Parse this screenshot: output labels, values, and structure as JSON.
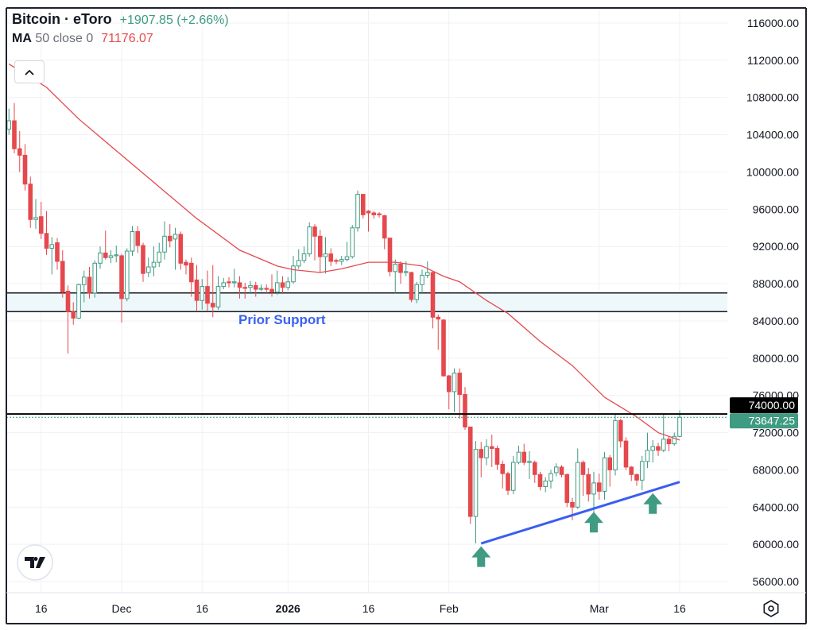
{
  "header": {
    "title": "Bitcoin · eToro",
    "change": "+1907.85 (+2.66%)",
    "indicator_name": "MA",
    "indicator_params": "50 close 0",
    "indicator_value": "71176.07"
  },
  "icons": {
    "collapse": "chevron-up-icon",
    "logo": "tradingview-logo-icon",
    "settings": "hexagon-settings-icon",
    "markers": "arrow-up-icon"
  },
  "colors": {
    "up": "#3f9b82",
    "down": "#e5484d",
    "ma": "#e5484d",
    "trendline": "#3a5ef0",
    "support_zone": "#eef8fb",
    "annotation_text": "#3a63f0",
    "resistance": "#000000"
  },
  "chart_data": {
    "type": "candlestick",
    "interval": "1D",
    "last_date": "2026-03-16",
    "ylim": [
      54000,
      118000
    ],
    "grid": true,
    "y_ticks": [
      "116000.00",
      "112000.00",
      "108000.00",
      "104000.00",
      "100000.00",
      "96000.00",
      "92000.00",
      "88000.00",
      "84000.00",
      "80000.00",
      "76000.00",
      "72000.00",
      "68000.00",
      "64000.00",
      "60000.00",
      "56000.00"
    ],
    "x_ticks": [
      {
        "label": "16",
        "bar": 6,
        "bold": false
      },
      {
        "label": "Dec",
        "bar": 21,
        "bold": false
      },
      {
        "label": "16",
        "bar": 36,
        "bold": false
      },
      {
        "label": "2026",
        "bar": 52,
        "bold": true
      },
      {
        "label": "16",
        "bar": 67,
        "bold": false
      },
      {
        "label": "Feb",
        "bar": 82,
        "bold": false
      },
      {
        "label": "Mar",
        "bar": 110,
        "bold": false
      },
      {
        "label": "16",
        "bar": 125,
        "bold": false
      }
    ],
    "ohlc_columns": [
      "open",
      "high",
      "low",
      "close"
    ],
    "candles": [
      [
        104600,
        106800,
        104000,
        105500
      ],
      [
        105500,
        107400,
        102000,
        102500
      ],
      [
        102500,
        104400,
        100000,
        101800
      ],
      [
        101800,
        103000,
        98000,
        98700
      ],
      [
        98700,
        99500,
        94000,
        94900
      ],
      [
        94900,
        97100,
        93900,
        95100
      ],
      [
        95200,
        96800,
        92800,
        93400
      ],
      [
        93400,
        95800,
        91100,
        91800
      ],
      [
        91800,
        93000,
        89000,
        92200
      ],
      [
        92400,
        92900,
        89500,
        90400
      ],
      [
        90400,
        91600,
        86500,
        87100
      ],
      [
        87200,
        87800,
        80500,
        85000
      ],
      [
        85000,
        86000,
        83600,
        84300
      ],
      [
        84300,
        88000,
        84200,
        87900
      ],
      [
        87900,
        89400,
        86000,
        88700
      ],
      [
        88700,
        89800,
        86400,
        87000
      ],
      [
        87000,
        90500,
        86500,
        90200
      ],
      [
        90200,
        92000,
        89600,
        91300
      ],
      [
        91300,
        93700,
        90600,
        90800
      ],
      [
        90800,
        91600,
        90200,
        91000
      ],
      [
        91000,
        92100,
        90300,
        91100
      ],
      [
        91000,
        91200,
        83800,
        86400
      ],
      [
        86400,
        91800,
        86100,
        91500
      ],
      [
        91500,
        94200,
        91000,
        93600
      ],
      [
        93600,
        94200,
        91300,
        92100
      ],
      [
        92100,
        92400,
        88200,
        89100
      ],
      [
        89200,
        90800,
        88700,
        89800
      ],
      [
        89800,
        92000,
        88800,
        90300
      ],
      [
        90300,
        92400,
        89800,
        91400
      ],
      [
        91400,
        94700,
        90600,
        93100
      ],
      [
        93100,
        94400,
        91900,
        92600
      ],
      [
        92800,
        94000,
        89500,
        93300
      ],
      [
        93300,
        93600,
        89500,
        90200
      ],
      [
        90300,
        90600,
        89000,
        90000
      ],
      [
        90200,
        90800,
        86600,
        88200
      ],
      [
        88400,
        90000,
        85000,
        86200
      ],
      [
        86200,
        88500,
        85200,
        87700
      ],
      [
        87700,
        89400,
        85000,
        85900
      ],
      [
        85900,
        90000,
        84400,
        85500
      ],
      [
        85500,
        88800,
        85200,
        87700
      ],
      [
        87700,
        88600,
        87400,
        88100
      ],
      [
        88200,
        88700,
        87600,
        88100
      ],
      [
        88100,
        89600,
        87600,
        88200
      ],
      [
        88100,
        88800,
        86400,
        87600
      ],
      [
        87600,
        88100,
        86400,
        87500
      ],
      [
        87600,
        88300,
        87000,
        87800
      ],
      [
        87800,
        88200,
        86600,
        87400
      ],
      [
        87400,
        87900,
        87200,
        87500
      ],
      [
        87500,
        87900,
        87000,
        87400
      ],
      [
        87400,
        89000,
        86600,
        87100
      ],
      [
        87100,
        89400,
        86800,
        88100
      ],
      [
        88100,
        88800,
        86900,
        87600
      ],
      [
        87600,
        88700,
        87300,
        88200
      ],
      [
        88200,
        91000,
        88000,
        89900
      ],
      [
        89900,
        91700,
        89600,
        90500
      ],
      [
        90500,
        92000,
        90200,
        91200
      ],
      [
        91200,
        94600,
        90900,
        94100
      ],
      [
        94100,
        94400,
        90500,
        93100
      ],
      [
        93100,
        93800,
        89200,
        90900
      ],
      [
        90900,
        93000,
        89100,
        91200
      ],
      [
        91200,
        91800,
        89900,
        90400
      ],
      [
        90500,
        90700,
        90100,
        90400
      ],
      [
        90400,
        91000,
        90000,
        90600
      ],
      [
        90600,
        92500,
        90400,
        90900
      ],
      [
        90900,
        94300,
        90700,
        94000
      ],
      [
        94000,
        98000,
        93600,
        97600
      ],
      [
        97600,
        97600,
        95000,
        95400
      ],
      [
        95800,
        95900,
        93600,
        95600
      ],
      [
        95600,
        95800,
        95000,
        95400
      ],
      [
        95500,
        95700,
        95100,
        95400
      ],
      [
        95300,
        95400,
        91700,
        92900
      ],
      [
        92900,
        92900,
        88800,
        89300
      ],
      [
        89300,
        90600,
        87000,
        90100
      ],
      [
        90100,
        90400,
        88000,
        89200
      ],
      [
        89200,
        90400,
        88800,
        89300
      ],
      [
        89200,
        89300,
        86000,
        86300
      ],
      [
        86300,
        88200,
        85900,
        87900
      ],
      [
        87900,
        89500,
        87000,
        88900
      ],
      [
        88900,
        90400,
        88600,
        89200
      ],
      [
        89200,
        89300,
        83200,
        84400
      ],
      [
        84400,
        84700,
        80900,
        84200
      ],
      [
        84100,
        84200,
        78000,
        78100
      ],
      [
        78100,
        78200,
        74500,
        76400
      ],
      [
        76400,
        78900,
        74200,
        78400
      ],
      [
        78400,
        78900,
        73500,
        76100
      ],
      [
        76100,
        76900,
        72300,
        72600
      ],
      [
        72600,
        72600,
        62200,
        63000
      ],
      [
        63000,
        71100,
        60100,
        70200
      ],
      [
        70200,
        71000,
        67200,
        69300
      ],
      [
        69300,
        71300,
        68500,
        70500
      ],
      [
        70500,
        71800,
        68300,
        70300
      ],
      [
        70300,
        70600,
        68000,
        68600
      ],
      [
        68600,
        69000,
        66000,
        67600
      ],
      [
        67600,
        67800,
        65300,
        65800
      ],
      [
        65800,
        69500,
        65400,
        68800
      ],
      [
        68800,
        70600,
        68600,
        69900
      ],
      [
        69900,
        70800,
        68500,
        68800
      ],
      [
        68800,
        70000,
        67000,
        68900
      ],
      [
        68800,
        69000,
        66600,
        67500
      ],
      [
        67500,
        67800,
        65800,
        66200
      ],
      [
        66200,
        67200,
        65600,
        66800
      ],
      [
        66800,
        68000,
        66000,
        67600
      ],
      [
        67700,
        68700,
        67300,
        68300
      ],
      [
        68300,
        68500,
        67200,
        67500
      ],
      [
        67500,
        67600,
        64000,
        64500
      ],
      [
        64500,
        65000,
        62600,
        64000
      ],
      [
        64000,
        70300,
        63800,
        68800
      ],
      [
        68800,
        69000,
        65200,
        67500
      ],
      [
        67500,
        68200,
        64600,
        65400
      ],
      [
        65400,
        67800,
        63000,
        66600
      ],
      [
        66600,
        67600,
        64800,
        65700
      ],
      [
        65700,
        69900,
        64800,
        69300
      ],
      [
        69300,
        69600,
        66200,
        68000
      ],
      [
        68000,
        74000,
        67400,
        73300
      ],
      [
        73300,
        73500,
        70400,
        71100
      ],
      [
        71100,
        71500,
        68000,
        68300
      ],
      [
        68300,
        68400,
        66800,
        67500
      ],
      [
        67500,
        67600,
        66300,
        66900
      ],
      [
        66900,
        69500,
        65800,
        68900
      ],
      [
        68900,
        72000,
        68200,
        70100
      ],
      [
        70100,
        71200,
        68800,
        70500
      ],
      [
        70500,
        70900,
        69500,
        70100
      ],
      [
        70100,
        73900,
        69900,
        71300
      ],
      [
        71300,
        71600,
        70000,
        70800
      ],
      [
        70800,
        72000,
        70600,
        71600
      ],
      [
        71600,
        74400,
        71500,
        73647.25
      ]
    ],
    "moving_average": {
      "name": "MA 50 close 0",
      "points_bar_value": [
        [
          0,
          111600
        ],
        [
          7,
          109100
        ],
        [
          13,
          105700
        ],
        [
          21,
          101800
        ],
        [
          28,
          98400
        ],
        [
          35,
          95000
        ],
        [
          43,
          91600
        ],
        [
          50,
          89900
        ],
        [
          53,
          89500
        ],
        [
          58,
          89200
        ],
        [
          62,
          89600
        ],
        [
          67,
          90300
        ],
        [
          72,
          90300
        ],
        [
          77,
          89900
        ],
        [
          81,
          88800
        ],
        [
          84,
          88200
        ],
        [
          89,
          86200
        ],
        [
          93,
          84800
        ],
        [
          99,
          81800
        ],
        [
          105,
          79200
        ],
        [
          111,
          75800
        ],
        [
          117,
          73700
        ],
        [
          121,
          72000
        ],
        [
          125,
          71200
        ]
      ]
    },
    "annotations": {
      "support_zone": {
        "from": 85000,
        "to": 87000,
        "label": "Prior Support"
      },
      "resistance_line": {
        "price": 74000,
        "label": "74000.00"
      },
      "last_price": {
        "price": 73647.25,
        "label": "73647.25"
      },
      "trendline": {
        "start": [
          88,
          60100
        ],
        "end": [
          125,
          66700
        ]
      },
      "arrows": [
        {
          "bar": 88,
          "price": 58600
        },
        {
          "bar": 109,
          "price": 62300
        },
        {
          "bar": 120,
          "price": 64300
        }
      ]
    }
  }
}
